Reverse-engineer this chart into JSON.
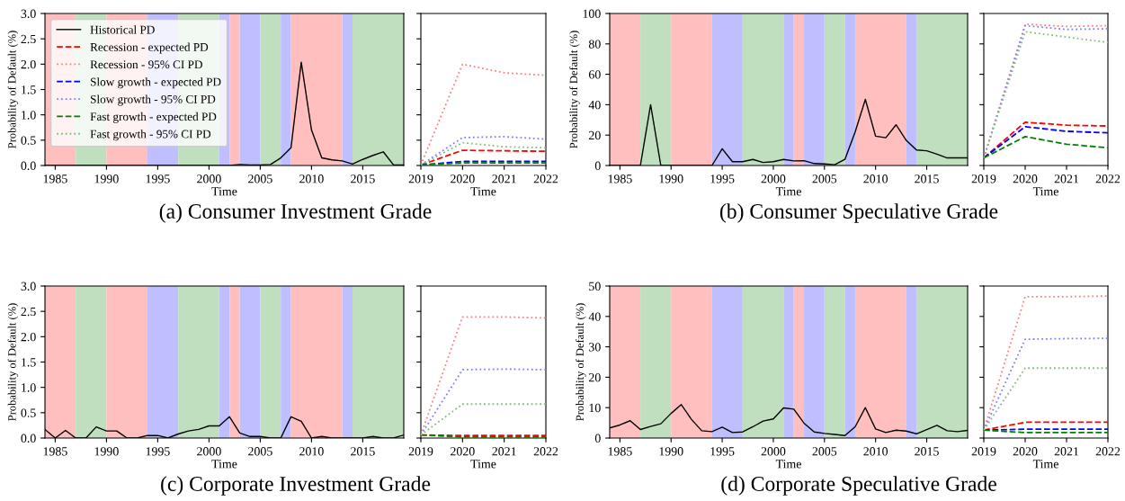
{
  "chart_data": [
    {
      "type": "line",
      "xlabel": "Time",
      "ylabel": "Probability of Default (%)",
      "xlim": [
        1984,
        2019
      ],
      "ylim": [
        0,
        3
      ],
      "xticks": [
        1985,
        1990,
        1995,
        2000,
        2005,
        2010,
        2015
      ],
      "yticks": [
        {
          "value": 0,
          "label": "0.0"
        },
        0.5,
        {
          "value": 1,
          "label": "1.0"
        },
        1.5,
        {
          "value": 2,
          "label": "2.0"
        },
        2.5,
        {
          "value": 3,
          "label": "3.0"
        }
      ],
      "grid": false,
      "legend": "top left",
      "annotations": [
        "(a) Consumer Investment Grade"
      ],
      "bands": [
        {
          "axis": "x",
          "from": 1984,
          "to": 1987,
          "color": "#ffbfbf"
        },
        {
          "axis": "x",
          "from": 1987,
          "to": 1990,
          "color": "#bfdfbf"
        },
        {
          "axis": "x",
          "from": 1990,
          "to": 1994,
          "color": "#ffbfbf"
        },
        {
          "axis": "x",
          "from": 1994,
          "to": 1997,
          "color": "#bfbfff"
        },
        {
          "axis": "x",
          "from": 1997,
          "to": 2001,
          "color": "#bfdfbf"
        },
        {
          "axis": "x",
          "from": 2001,
          "to": 2002,
          "color": "#bfbfff"
        },
        {
          "axis": "x",
          "from": 2002,
          "to": 2003,
          "color": "#ffbfbf"
        },
        {
          "axis": "x",
          "from": 2003,
          "to": 2005,
          "color": "#bfbfff"
        },
        {
          "axis": "x",
          "from": 2005,
          "to": 2007,
          "color": "#bfdfbf"
        },
        {
          "axis": "x",
          "from": 2007,
          "to": 2008,
          "color": "#bfbfff"
        },
        {
          "axis": "x",
          "from": 2008,
          "to": 2013,
          "color": "#ffbfbf"
        },
        {
          "axis": "x",
          "from": 2013,
          "to": 2014,
          "color": "#bfbfff"
        },
        {
          "axis": "x",
          "from": 2014,
          "to": 2019,
          "color": "#bfdfbf"
        }
      ],
      "x": [
        1984,
        1985,
        1986,
        1987,
        1988,
        1989,
        1990,
        1991,
        1992,
        1993,
        1994,
        1995,
        1996,
        1997,
        1998,
        1999,
        2000,
        2001,
        2002,
        2003,
        2004,
        2005,
        2006,
        2007,
        2008,
        2009,
        2010,
        2011,
        2012,
        2013,
        2014,
        2015,
        2016,
        2017,
        2018,
        2019
      ],
      "series": [
        {
          "name": "Historical PD",
          "color": "#000000",
          "line_style": "solid",
          "values": [
            0,
            0,
            0,
            0,
            0,
            0,
            0,
            0,
            0,
            0,
            0,
            0,
            0,
            0,
            0,
            0,
            0,
            0,
            0,
            0.02,
            0.01,
            0.01,
            0.02,
            0.15,
            0.35,
            2.04,
            0.7,
            0.15,
            0.11,
            0.09,
            0.03,
            0.12,
            0.2,
            0.27,
            0.01,
            0.01
          ]
        }
      ]
    },
    {
      "type": "line",
      "xlabel": "Time",
      "xlim": [
        2019,
        2022
      ],
      "ylim": [
        0,
        3
      ],
      "xticks": [
        2019,
        2020,
        2021,
        2022
      ],
      "yticks": [
        0,
        0.5,
        1,
        1.5,
        2,
        2.5,
        3
      ],
      "tick_labels": "x",
      "grid": false,
      "legend": "left",
      "x": [
        2019,
        2020,
        2021,
        2022
      ],
      "series": [
        {
          "name": "Recession - expected PD",
          "color": "#ff0000",
          "line_style": "dashed",
          "values": [
            0.01,
            0.3,
            0.29,
            0.28
          ]
        },
        {
          "name": "Recession - 95% CI PD",
          "color": "#ff8080",
          "line_style": "dotted",
          "values": [
            0.01,
            2.0,
            1.83,
            1.78
          ]
        },
        {
          "name": "Slow growth - expected PD",
          "color": "#0000ff",
          "line_style": "dashed",
          "values": [
            0.01,
            0.08,
            0.08,
            0.08
          ]
        },
        {
          "name": "Slow growth - 95% CI PD",
          "color": "#8080ff",
          "line_style": "dotted",
          "values": [
            0.01,
            0.55,
            0.57,
            0.52
          ]
        },
        {
          "name": "Fast growth - expected PD",
          "color": "#008000",
          "line_style": "dashed",
          "values": [
            0.01,
            0.05,
            0.05,
            0.05
          ]
        },
        {
          "name": "Fast growth - 95% CI PD",
          "color": "#80c080",
          "line_style": "dotted",
          "values": [
            0.01,
            0.45,
            0.37,
            0.35
          ]
        }
      ]
    },
    {
      "type": "line",
      "xlabel": "Time",
      "ylabel": "Probability of Default (%)",
      "xlim": [
        1984,
        2019
      ],
      "ylim": [
        0,
        100
      ],
      "xticks": [
        1985,
        1990,
        1995,
        2000,
        2005,
        2010,
        2015
      ],
      "yticks": [
        0,
        20,
        40,
        60,
        80,
        100
      ],
      "grid": false,
      "annotations": [
        "(b) Consumer Speculative Grade"
      ],
      "bands": [
        {
          "axis": "x",
          "from": 1984,
          "to": 1987,
          "color": "#ffbfbf"
        },
        {
          "axis": "x",
          "from": 1987,
          "to": 1990,
          "color": "#bfdfbf"
        },
        {
          "axis": "x",
          "from": 1990,
          "to": 1994,
          "color": "#ffbfbf"
        },
        {
          "axis": "x",
          "from": 1994,
          "to": 1997,
          "color": "#bfbfff"
        },
        {
          "axis": "x",
          "from": 1997,
          "to": 2001,
          "color": "#bfdfbf"
        },
        {
          "axis": "x",
          "from": 2001,
          "to": 2002,
          "color": "#bfbfff"
        },
        {
          "axis": "x",
          "from": 2002,
          "to": 2003,
          "color": "#ffbfbf"
        },
        {
          "axis": "x",
          "from": 2003,
          "to": 2005,
          "color": "#bfbfff"
        },
        {
          "axis": "x",
          "from": 2005,
          "to": 2007,
          "color": "#bfdfbf"
        },
        {
          "axis": "x",
          "from": 2007,
          "to": 2008,
          "color": "#bfbfff"
        },
        {
          "axis": "x",
          "from": 2008,
          "to": 2013,
          "color": "#ffbfbf"
        },
        {
          "axis": "x",
          "from": 2013,
          "to": 2014,
          "color": "#bfbfff"
        },
        {
          "axis": "x",
          "from": 2014,
          "to": 2019,
          "color": "#bfdfbf"
        }
      ],
      "x": [
        1984,
        1985,
        1986,
        1987,
        1988,
        1989,
        1990,
        1991,
        1992,
        1993,
        1994,
        1995,
        1996,
        1997,
        1998,
        1999,
        2000,
        2001,
        2002,
        2003,
        2004,
        2005,
        2006,
        2007,
        2008,
        2009,
        2010,
        2011,
        2012,
        2013,
        2014,
        2015,
        2016,
        2017,
        2018,
        2019
      ],
      "series": [
        {
          "color": "#000000",
          "line_style": "solid",
          "values": [
            0,
            0,
            0,
            0,
            40,
            0,
            0,
            0,
            0,
            0,
            0,
            11,
            2.5,
            2.5,
            4,
            2,
            2.5,
            4,
            3,
            3.2,
            1.3,
            1,
            0.5,
            4,
            22,
            43.5,
            19.3,
            18.3,
            26.8,
            16.5,
            10.2,
            9.7,
            7.5,
            5,
            5,
            5
          ]
        }
      ]
    },
    {
      "type": "line",
      "xlabel": "Time",
      "xlim": [
        2019,
        2022
      ],
      "ylim": [
        0,
        100
      ],
      "xticks": [
        2019,
        2020,
        2021,
        2022
      ],
      "yticks": [
        0,
        20,
        40,
        60,
        80,
        100
      ],
      "tick_labels": "x",
      "grid": false,
      "x": [
        2019,
        2020,
        2021,
        2022
      ],
      "series": [
        {
          "color": "#ff0000",
          "line_style": "dashed",
          "values": [
            5,
            28.5,
            26.5,
            26
          ]
        },
        {
          "color": "#ff8080",
          "line_style": "dotted",
          "values": [
            5,
            93,
            91.5,
            92
          ]
        },
        {
          "color": "#0000ff",
          "line_style": "dashed",
          "values": [
            5,
            25.5,
            22.5,
            21.5
          ]
        },
        {
          "color": "#8080ff",
          "line_style": "dotted",
          "values": [
            5,
            92,
            89.5,
            90
          ]
        },
        {
          "color": "#008000",
          "line_style": "dashed",
          "values": [
            5,
            19,
            14,
            11.7
          ]
        },
        {
          "color": "#80c080",
          "line_style": "dotted",
          "values": [
            5,
            88,
            84.5,
            81
          ]
        }
      ]
    },
    {
      "type": "line",
      "xlabel": "Time",
      "ylabel": "Probability of Default (%)",
      "xlim": [
        1984,
        2019
      ],
      "ylim": [
        0,
        3
      ],
      "xticks": [
        1985,
        1990,
        1995,
        2000,
        2005,
        2010,
        2015
      ],
      "yticks": [
        {
          "value": 0,
          "label": "0.0"
        },
        0.5,
        {
          "value": 1,
          "label": "1.0"
        },
        1.5,
        {
          "value": 2,
          "label": "2.0"
        },
        2.5,
        {
          "value": 3,
          "label": "3.0"
        }
      ],
      "grid": false,
      "annotations": [
        "(c) Corporate Investment Grade"
      ],
      "bands": [
        {
          "axis": "x",
          "from": 1984,
          "to": 1987,
          "color": "#ffbfbf"
        },
        {
          "axis": "x",
          "from": 1987,
          "to": 1990,
          "color": "#bfdfbf"
        },
        {
          "axis": "x",
          "from": 1990,
          "to": 1994,
          "color": "#ffbfbf"
        },
        {
          "axis": "x",
          "from": 1994,
          "to": 1997,
          "color": "#bfbfff"
        },
        {
          "axis": "x",
          "from": 1997,
          "to": 2001,
          "color": "#bfdfbf"
        },
        {
          "axis": "x",
          "from": 2001,
          "to": 2002,
          "color": "#bfbfff"
        },
        {
          "axis": "x",
          "from": 2002,
          "to": 2003,
          "color": "#ffbfbf"
        },
        {
          "axis": "x",
          "from": 2003,
          "to": 2005,
          "color": "#bfbfff"
        },
        {
          "axis": "x",
          "from": 2005,
          "to": 2007,
          "color": "#bfdfbf"
        },
        {
          "axis": "x",
          "from": 2007,
          "to": 2008,
          "color": "#bfbfff"
        },
        {
          "axis": "x",
          "from": 2008,
          "to": 2013,
          "color": "#ffbfbf"
        },
        {
          "axis": "x",
          "from": 2013,
          "to": 2014,
          "color": "#bfbfff"
        },
        {
          "axis": "x",
          "from": 2014,
          "to": 2019,
          "color": "#bfdfbf"
        }
      ],
      "x": [
        1984,
        1985,
        1986,
        1987,
        1988,
        1989,
        1990,
        1991,
        1992,
        1993,
        1994,
        1995,
        1996,
        1997,
        1998,
        1999,
        2000,
        2001,
        2002,
        2003,
        2004,
        2005,
        2006,
        2007,
        2008,
        2009,
        2010,
        2011,
        2012,
        2013,
        2014,
        2015,
        2016,
        2017,
        2018,
        2019
      ],
      "series": [
        {
          "color": "#000000",
          "line_style": "solid",
          "values": [
            0.17,
            0,
            0.15,
            0,
            0,
            0.22,
            0.14,
            0.14,
            0,
            0,
            0.05,
            0.05,
            0,
            0.08,
            0.14,
            0.17,
            0.24,
            0.24,
            0.42,
            0.1,
            0.03,
            0.03,
            0,
            0,
            0.42,
            0.33,
            0,
            0.03,
            0,
            0,
            0,
            0,
            0.03,
            0,
            0,
            0.06
          ]
        }
      ]
    },
    {
      "type": "line",
      "xlabel": "Time",
      "xlim": [
        2019,
        2022
      ],
      "ylim": [
        0,
        3
      ],
      "xticks": [
        2019,
        2020,
        2021,
        2022
      ],
      "yticks": [
        0,
        0.5,
        1,
        1.5,
        2,
        2.5,
        3
      ],
      "tick_labels": "x",
      "grid": false,
      "x": [
        2019,
        2020,
        2021,
        2022
      ],
      "series": [
        {
          "color": "#ff0000",
          "line_style": "dashed",
          "values": [
            0.06,
            0.05,
            0.05,
            0.05
          ]
        },
        {
          "color": "#ff8080",
          "line_style": "dotted",
          "values": [
            0.06,
            2.39,
            2.39,
            2.37
          ]
        },
        {
          "color": "#0000ff",
          "line_style": "dashed",
          "values": [
            null,
            null,
            null,
            null
          ]
        },
        {
          "color": "#8080ff",
          "line_style": "dotted",
          "values": [
            0.06,
            1.35,
            1.36,
            1.35
          ]
        },
        {
          "color": "#008000",
          "line_style": "dashed",
          "values": [
            0.06,
            0.02,
            0.02,
            0.02
          ]
        },
        {
          "color": "#80c080",
          "line_style": "dotted",
          "values": [
            0.06,
            0.67,
            0.67,
            0.67
          ]
        }
      ]
    },
    {
      "type": "line",
      "xlabel": "Time",
      "ylabel": "Probability of Default (%)",
      "xlim": [
        1984,
        2019
      ],
      "ylim": [
        0,
        50
      ],
      "xticks": [
        1985,
        1990,
        1995,
        2000,
        2005,
        2010,
        2015
      ],
      "yticks": [
        0,
        10,
        20,
        30,
        40,
        50
      ],
      "grid": false,
      "annotations": [
        "(d) Corporate Speculative Grade"
      ],
      "bands": [
        {
          "axis": "x",
          "from": 1984,
          "to": 1987,
          "color": "#ffbfbf"
        },
        {
          "axis": "x",
          "from": 1987,
          "to": 1990,
          "color": "#bfdfbf"
        },
        {
          "axis": "x",
          "from": 1990,
          "to": 1994,
          "color": "#ffbfbf"
        },
        {
          "axis": "x",
          "from": 1994,
          "to": 1997,
          "color": "#bfbfff"
        },
        {
          "axis": "x",
          "from": 1997,
          "to": 2001,
          "color": "#bfdfbf"
        },
        {
          "axis": "x",
          "from": 2001,
          "to": 2002,
          "color": "#bfbfff"
        },
        {
          "axis": "x",
          "from": 2002,
          "to": 2003,
          "color": "#ffbfbf"
        },
        {
          "axis": "x",
          "from": 2003,
          "to": 2005,
          "color": "#bfbfff"
        },
        {
          "axis": "x",
          "from": 2005,
          "to": 2007,
          "color": "#bfdfbf"
        },
        {
          "axis": "x",
          "from": 2007,
          "to": 2008,
          "color": "#bfbfff"
        },
        {
          "axis": "x",
          "from": 2008,
          "to": 2013,
          "color": "#ffbfbf"
        },
        {
          "axis": "x",
          "from": 2013,
          "to": 2014,
          "color": "#bfbfff"
        },
        {
          "axis": "x",
          "from": 2014,
          "to": 2019,
          "color": "#bfdfbf"
        }
      ],
      "x": [
        1984,
        1985,
        1986,
        1987,
        1988,
        1989,
        1990,
        1991,
        1992,
        1993,
        1994,
        1995,
        1996,
        1997,
        1998,
        1999,
        2000,
        2001,
        2002,
        2003,
        2004,
        2005,
        2006,
        2007,
        2008,
        2009,
        2010,
        2011,
        2012,
        2013,
        2014,
        2015,
        2016,
        2017,
        2018,
        2019
      ],
      "series": [
        {
          "color": "#000000",
          "line_style": "solid",
          "values": [
            3.3,
            4.3,
            5.7,
            2.8,
            3.8,
            4.7,
            8.1,
            11,
            6.1,
            2.4,
            2.1,
            3.6,
            1.8,
            2,
            3.7,
            5.6,
            6.3,
            9.9,
            9.5,
            4.9,
            2,
            1.5,
            1.2,
            0.8,
            3.7,
            10,
            3,
            1.8,
            2.6,
            2.3,
            1.4,
            2.8,
            4.2,
            2.4,
            2.1,
            2.5
          ]
        }
      ]
    },
    {
      "type": "line",
      "xlabel": "Time",
      "xlim": [
        2019,
        2022
      ],
      "ylim": [
        0,
        50
      ],
      "xticks": [
        2019,
        2020,
        2021,
        2022
      ],
      "yticks": [
        0,
        10,
        20,
        30,
        40,
        50
      ],
      "tick_labels": "x",
      "grid": false,
      "x": [
        2019,
        2020,
        2021,
        2022
      ],
      "series": [
        {
          "color": "#ff0000",
          "line_style": "dashed",
          "values": [
            2.6,
            5.2,
            5.2,
            5.2
          ]
        },
        {
          "color": "#ff8080",
          "line_style": "dotted",
          "values": [
            2.6,
            46.5,
            46.5,
            46.7
          ]
        },
        {
          "color": "#0000ff",
          "line_style": "dashed",
          "values": [
            2.6,
            2.9,
            2.9,
            2.9
          ]
        },
        {
          "color": "#8080ff",
          "line_style": "dotted",
          "values": [
            2.6,
            32.5,
            32.7,
            32.8
          ]
        },
        {
          "color": "#008000",
          "line_style": "dashed",
          "values": [
            2.6,
            1.8,
            1.8,
            1.8
          ]
        },
        {
          "color": "#80c080",
          "line_style": "dotted",
          "values": [
            2.6,
            23,
            23,
            23
          ]
        }
      ]
    }
  ]
}
